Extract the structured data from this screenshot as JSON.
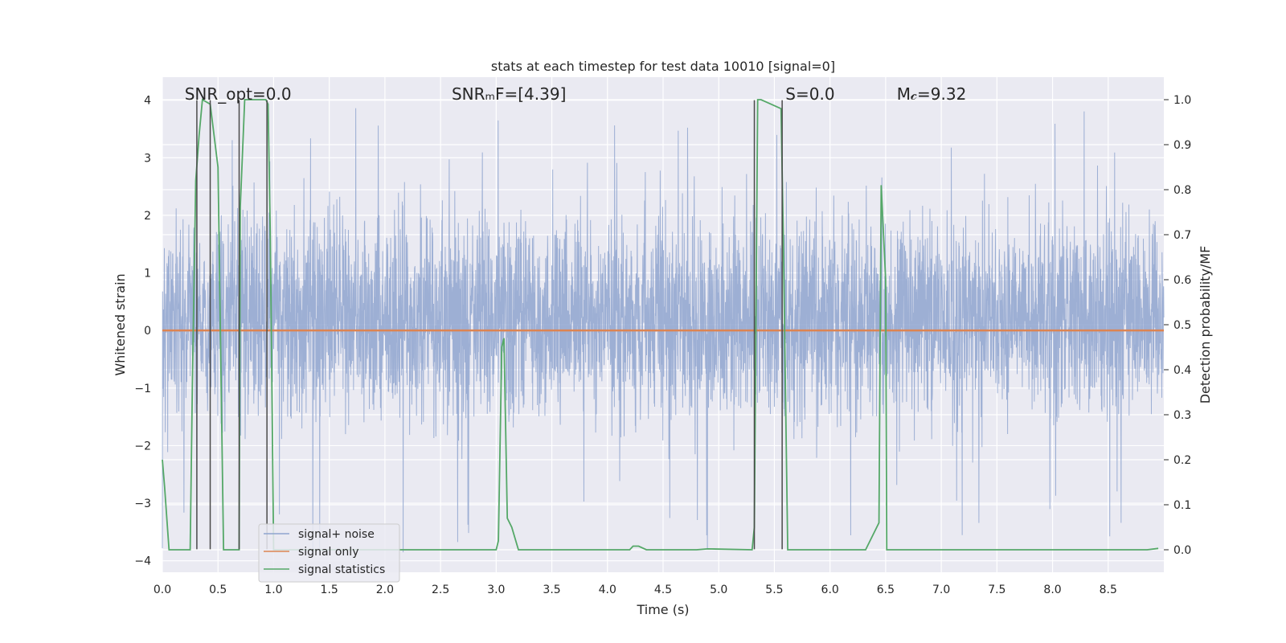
{
  "chart_data": {
    "type": "line",
    "title": "stats at each timestep for test data 10010 [signal=0]",
    "xlabel": "Time (s)",
    "ylabel_left": "Whitened strain",
    "ylabel_right": "Detection probability/MF",
    "xlim": [
      0.0,
      9.0
    ],
    "ylim_left": [
      -4.2,
      4.4
    ],
    "ylim_right": [
      -0.05,
      1.05
    ],
    "x_ticks": [
      0.0,
      0.5,
      1.0,
      1.5,
      2.0,
      2.5,
      3.0,
      3.5,
      4.0,
      4.5,
      5.0,
      5.5,
      6.0,
      6.5,
      7.0,
      7.5,
      8.0,
      8.5
    ],
    "x_tick_labels": [
      "0.0",
      "0.5",
      "1.0",
      "1.5",
      "2.0",
      "2.5",
      "3.0",
      "3.5",
      "4.0",
      "4.5",
      "5.0",
      "5.5",
      "6.0",
      "6.5",
      "7.0",
      "7.5",
      "8.0",
      "8.5"
    ],
    "y_left_ticks": [
      4,
      3,
      2,
      1,
      0,
      -1,
      -2,
      -3,
      -4
    ],
    "y_left_tick_labels": [
      "4",
      "3",
      "2",
      "1",
      "0",
      "−1",
      "−2",
      "−3",
      "−4"
    ],
    "y_right_ticks": [
      1.0,
      0.9,
      0.8,
      0.7,
      0.6,
      0.5,
      0.4,
      0.3,
      0.2,
      0.1,
      0.0
    ],
    "y_right_tick_labels": [
      "1.0",
      "0.9",
      "0.8",
      "0.7",
      "0.6",
      "0.5",
      "0.4",
      "0.3",
      "0.2",
      "0.1",
      "0.0"
    ],
    "grid": true,
    "legend_position": "lower-left",
    "annotations": [
      {
        "text": "SNR_opt=0.0",
        "x": 0.2
      },
      {
        "text": "SNRₘF=[4.39]",
        "x": 2.6
      },
      {
        "text": "S=0.0",
        "x": 5.6
      },
      {
        "text": "M𝒸=9.32",
        "x": 6.6
      }
    ],
    "series": [
      {
        "name": "signal+ noise",
        "color": "#8fa5cf",
        "kind": "noise",
        "axis": "left",
        "x_range": [
          0.0,
          9.0
        ],
        "typical_envelope": [
          -1.6,
          2.4
        ],
        "peak_max": 4.0,
        "peak_min": -3.9
      },
      {
        "name": "signal only",
        "color": "#dd8452",
        "axis": "left",
        "x": [
          0.0,
          9.0
        ],
        "y": [
          0.0,
          0.0
        ]
      },
      {
        "name": "signal statistics",
        "color": "#55a868",
        "axis": "right",
        "x": [
          0.0,
          0.02,
          0.06,
          0.25,
          0.27,
          0.3,
          0.33,
          0.36,
          0.43,
          0.5,
          0.55,
          0.69,
          0.7,
          0.74,
          0.93,
          0.95,
          0.97,
          1.0,
          3.0,
          3.02,
          3.05,
          3.07,
          3.1,
          3.14,
          3.2,
          4.2,
          4.23,
          4.28,
          4.35,
          4.8,
          4.9,
          5.3,
          5.32,
          5.35,
          5.38,
          5.56,
          5.58,
          5.62,
          5.63,
          5.78,
          6.32,
          6.4,
          6.44,
          6.46,
          6.5,
          6.51,
          8.8,
          8.85,
          8.95
        ],
        "y": [
          0.2,
          0.14,
          0.0,
          0.0,
          0.37,
          0.82,
          0.92,
          1.0,
          0.99,
          0.85,
          0.0,
          0.0,
          0.76,
          1.0,
          1.0,
          0.99,
          0.7,
          0.0,
          0.0,
          0.02,
          0.45,
          0.47,
          0.07,
          0.05,
          0.0,
          0.0,
          0.008,
          0.008,
          0.0,
          0.0,
          0.002,
          0.0,
          0.05,
          1.0,
          1.0,
          0.98,
          0.7,
          0.0,
          0.0,
          0.0,
          0.0,
          0.04,
          0.06,
          0.81,
          0.6,
          0.0,
          0.0,
          0.0,
          0.003
        ]
      }
    ],
    "vertical_markers": {
      "color": "#4a4a4a",
      "x": [
        0.31,
        0.43,
        0.69,
        0.94,
        5.32,
        5.57
      ]
    }
  }
}
